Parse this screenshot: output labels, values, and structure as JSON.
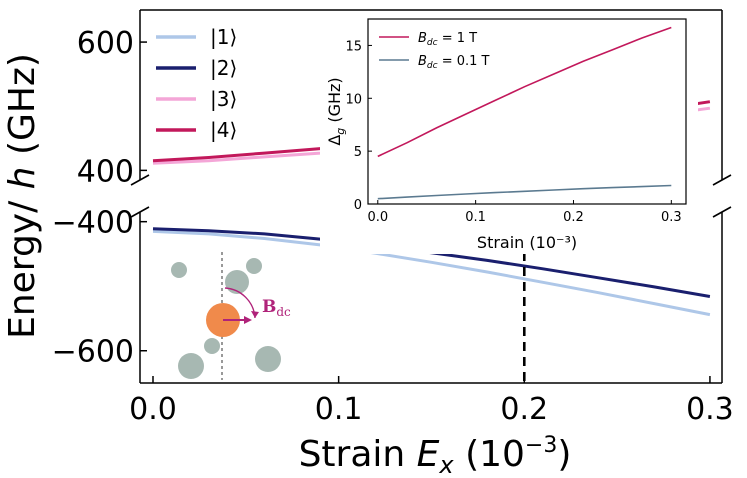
{
  "chart_data": {
    "type": "line",
    "x_axis": {
      "label_prefix": "Strain ",
      "label_var": "E",
      "label_sub": "x",
      "label_unit_open": " (10",
      "label_unit_exp": "−3",
      "label_unit_close": ")",
      "xlim": [
        -0.007,
        0.3065
      ],
      "ticks": [
        0.0,
        0.1,
        0.2,
        0.3
      ],
      "tick_labels": [
        "0.0",
        "0.1",
        "0.2",
        "0.3"
      ]
    },
    "y_axis": {
      "label_prefix": "Energy/ ",
      "label_var": "h",
      "label_suffix": " (GHz)",
      "upper_ylim": [
        385,
        650
      ],
      "lower_ylim": [
        -650,
        -385
      ],
      "ticks": [
        600,
        400,
        -400,
        -600
      ],
      "tick_labels": [
        "600",
        "400",
        "−400",
        "−600"
      ]
    },
    "x": [
      0.0,
      0.03,
      0.06,
      0.09,
      0.12,
      0.15,
      0.18,
      0.21,
      0.24,
      0.27,
      0.3
    ],
    "series": [
      {
        "name": "|1⟩",
        "color": "#aec7e8",
        "values": [
          -415,
          -419,
          -426,
          -436,
          -449,
          -463,
          -478,
          -494,
          -510,
          -527,
          -544
        ]
      },
      {
        "name": "|2⟩",
        "color": "#1a1f6e",
        "values": [
          -411,
          -414,
          -419,
          -427,
          -437,
          -448,
          -460,
          -473,
          -487,
          -501,
          -516
        ]
      },
      {
        "name": "|3⟩",
        "color": "#f4a6d7",
        "values": [
          411,
          415,
          421,
          427,
          435,
          444,
          453,
          463,
          474,
          485,
          497
        ]
      },
      {
        "name": "|4⟩",
        "color": "#c2185b",
        "values": [
          415,
          420,
          427,
          434,
          442,
          451,
          461,
          471,
          482,
          494,
          507
        ]
      }
    ],
    "marker_x": 0.2,
    "inset": {
      "type": "line",
      "xlabel": "Strain (10⁻³)",
      "ylabel_main": "Δ",
      "ylabel_sub": "g",
      "ylabel_unit": " (GHz)",
      "xlim": [
        -0.01,
        0.315
      ],
      "ylim": [
        0,
        17.5
      ],
      "xticks": [
        0.0,
        0.1,
        0.2,
        0.3
      ],
      "xtick_labels": [
        "0.0",
        "0.1",
        "0.2",
        "0.3"
      ],
      "yticks": [
        0,
        5,
        10,
        15
      ],
      "ytick_labels": [
        "0",
        "5",
        "10",
        "15"
      ],
      "x": [
        0.0,
        0.03,
        0.06,
        0.09,
        0.12,
        0.15,
        0.18,
        0.21,
        0.24,
        0.27,
        0.3
      ],
      "series": [
        {
          "legend_var": "B",
          "legend_sub": "dc",
          "legend_val": " = 1 T",
          "color": "#c2185b",
          "values": [
            4.5,
            5.8,
            7.2,
            8.5,
            9.8,
            11.1,
            12.3,
            13.5,
            14.6,
            15.7,
            16.7
          ]
        },
        {
          "legend_var": "B",
          "legend_sub": "dc",
          "legend_val": " = 0.1 T",
          "color": "#5b7a90",
          "values": [
            0.5,
            0.65,
            0.8,
            0.95,
            1.08,
            1.2,
            1.32,
            1.45,
            1.55,
            1.65,
            1.75
          ]
        }
      ]
    },
    "schematic": {
      "field_label": "B",
      "field_sub": "dc",
      "center_color": "#f08a4b",
      "ion_color": "#a7b8b2",
      "arrow_color": "#b0237a"
    }
  }
}
